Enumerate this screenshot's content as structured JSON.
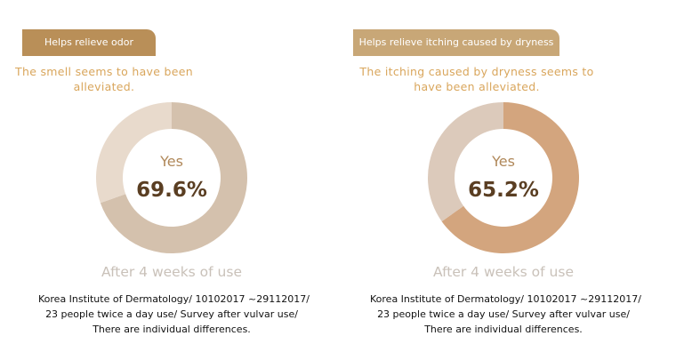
{
  "chart_data": [
    {
      "type": "donut",
      "title": "Helps relieve odor",
      "subtitle": "The smell seems to have been alleviated.",
      "categories": [
        "Yes",
        null
      ],
      "values": [
        69.6,
        30.4
      ],
      "value_labels": [
        "69.6%",
        null
      ],
      "colors": [
        "#d4c1ad",
        "#e8dacc"
      ],
      "header_color": "#b98f58",
      "footer": "After 4 weeks of use",
      "notes": [
        "Korea Institute of Dermatology/ 10102017 ~29112017/",
        "23 people twice a day use/ Survey after vulvar use/",
        "There are individual differences."
      ]
    },
    {
      "type": "donut",
      "title": "Helps relieve itching caused by dryness",
      "subtitle": "The itching caused by dryness seems to have been alleviated.",
      "categories": [
        "Yes",
        null
      ],
      "values": [
        65.2,
        34.8
      ],
      "value_labels": [
        "65.2%",
        null
      ],
      "colors": [
        "#d3a57e",
        "#dccabb"
      ],
      "header_color": "#c8a777",
      "footer": "After 4 weeks of use",
      "notes": [
        "Korea Institute of Dermatology/ 10102017 ~29112017/",
        "23 people twice a day use/ Survey after vulvar use/",
        "There are individual differences."
      ]
    }
  ]
}
